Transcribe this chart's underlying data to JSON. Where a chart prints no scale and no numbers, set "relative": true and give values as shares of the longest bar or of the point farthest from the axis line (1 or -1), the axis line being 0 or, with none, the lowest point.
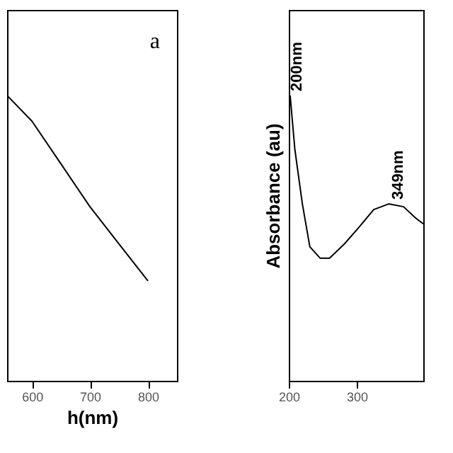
{
  "chart_data": [
    {
      "type": "line",
      "relative": true,
      "x": [
        557,
        600,
        650,
        700,
        750,
        800
      ],
      "xlim": [
        557,
        850
      ],
      "xticks": [
        600,
        700,
        800
      ],
      "xlabel": "h(nm)",
      "tick_labels": "x",
      "grid": false,
      "annotations": [
        "a"
      ],
      "series": [
        {
          "color": "#000000",
          "values": [
            1,
            0.91,
            0.76,
            0.61,
            0.48,
            0.35
          ]
        }
      ]
    },
    {
      "type": "line",
      "relative": true,
      "x": [
        202,
        209,
        220,
        231,
        246,
        260,
        282,
        304,
        325,
        347,
        369,
        387,
        398
      ],
      "xlim": [
        200,
        398
      ],
      "xticks": [
        200,
        300
      ],
      "ylabel": "Absorbance (au)",
      "tick_labels": "x",
      "grid": false,
      "annotations": [
        {
          "text": "200nm",
          "x": 200,
          "y": 1
        },
        {
          "text": "349nm",
          "x": 349,
          "y": 0.62
        }
      ],
      "series": [
        {
          "color": "#000000",
          "values": [
            1,
            0.81,
            0.62,
            0.47,
            0.43,
            0.43,
            0.48,
            0.54,
            0.6,
            0.62,
            0.61,
            0.57,
            0.55
          ]
        }
      ]
    }
  ]
}
